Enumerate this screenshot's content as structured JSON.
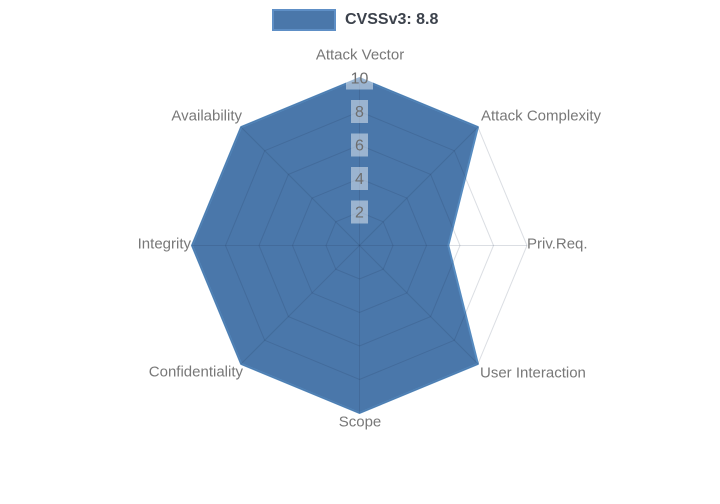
{
  "legend": {
    "position": "top",
    "items": [
      {
        "label": "CVSSv3: 8.8",
        "swatch_fill": "#4A77AA",
        "swatch_border": "#5E8FC6"
      }
    ]
  },
  "chart_data": {
    "type": "radar",
    "categories": [
      "Attack Vector",
      "Attack Complexity",
      "Priv.Req.",
      "User Interaction",
      "Scope",
      "Confidentiality",
      "Integrity",
      "Availability"
    ],
    "series": [
      {
        "name": "CVSSv3: 8.8",
        "values": [
          10,
          10,
          5.3,
          10,
          10,
          10,
          10,
          10
        ]
      }
    ],
    "range": [
      0,
      10
    ],
    "radial_ticks": [
      2,
      4,
      6,
      8,
      10
    ],
    "start_angle_deg": 90,
    "direction": "clockwise",
    "grid": "on",
    "legend_position": "top-center",
    "colors": {
      "fill": "#4A77AA",
      "line": "#568BC0",
      "grid": "rgba(30,50,80,0.16)",
      "tick_text": "#6E6E6E",
      "tick_backdrop": "rgba(255,255,255,0.45)",
      "label": "#787878",
      "legend_text": "#3C424C"
    }
  }
}
